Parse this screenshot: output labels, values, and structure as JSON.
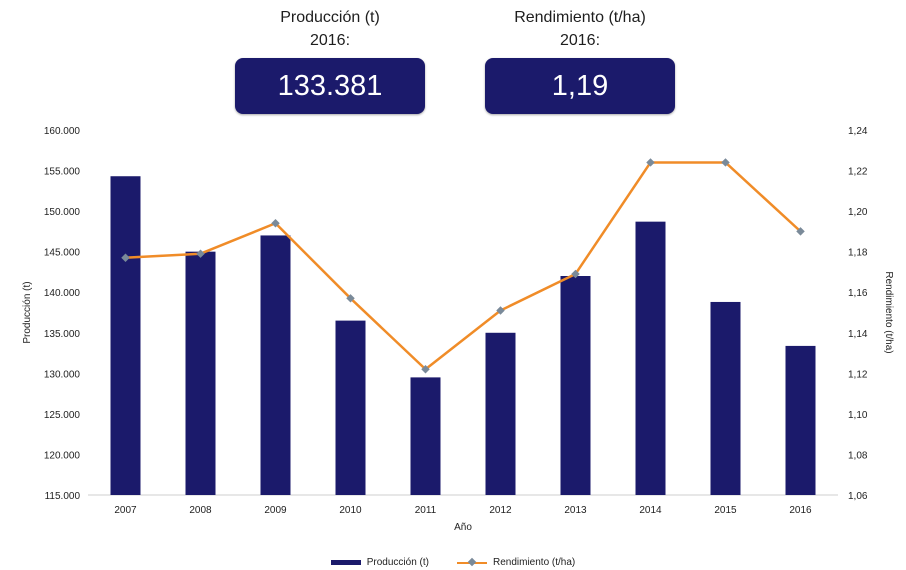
{
  "kpis": {
    "produccion": {
      "title_line1": "Producción  (t)",
      "title_line2": "2016:",
      "value": "133.381"
    },
    "rendimiento": {
      "title_line1": "Rendimiento (t/ha)",
      "title_line2": "2016:",
      "value": "1,19"
    }
  },
  "chart_data": {
    "type": "bar",
    "categories": [
      "2007",
      "2008",
      "2009",
      "2010",
      "2011",
      "2012",
      "2013",
      "2014",
      "2015",
      "2016"
    ],
    "xlabel": "Año",
    "series": [
      {
        "name": "Producción (t)",
        "type": "bar",
        "axis": "left",
        "color": "#1b1a6b",
        "values": [
          154300,
          145000,
          147000,
          136500,
          129500,
          135000,
          142000,
          148700,
          138800,
          133381
        ]
      },
      {
        "name": "Rendimiento (t/ha)",
        "type": "line",
        "axis": "right",
        "color": "#f08c28",
        "marker_color": "#7a8a99",
        "values": [
          1.177,
          1.179,
          1.194,
          1.157,
          1.122,
          1.151,
          1.169,
          1.224,
          1.224,
          1.19
        ]
      }
    ],
    "y_left": {
      "label": "Producción (t)",
      "range": [
        115000,
        160000
      ],
      "ticks": [
        "160.000",
        "155.000",
        "150.000",
        "145.000",
        "140.000",
        "135.000",
        "130.000",
        "125.000",
        "120.000",
        "115.000"
      ]
    },
    "y_right": {
      "label": "Rendimiento (t/ha)",
      "range": [
        1.06,
        1.24
      ],
      "ticks": [
        "1,24",
        "1,22",
        "1,20",
        "1,18",
        "1,16",
        "1,14",
        "1,12",
        "1,10",
        "1,08",
        "1,06"
      ]
    },
    "grid": false,
    "legend_position": "bottom-center"
  }
}
